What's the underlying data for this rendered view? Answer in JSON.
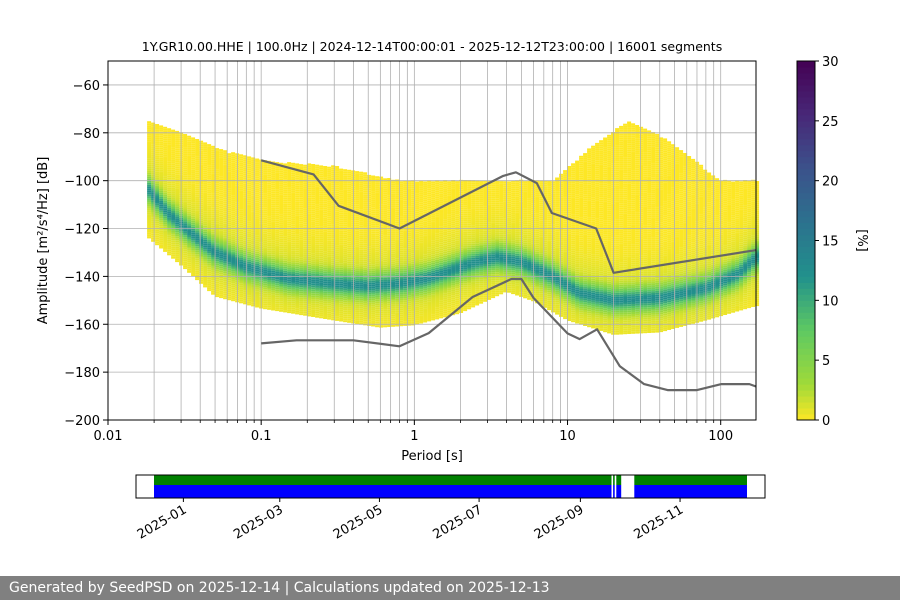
{
  "title": "1Y.GR10.00.HHE | 100.0Hz | 2024-12-14T00:00:01 - 2025-12-12T23:00:00 | 16001 segments",
  "footer": "Generated by SeedPSD on 2025-12-14 | Calculations updated on 2025-12-13",
  "chart_data": {
    "type": "heatmap",
    "xlabel": "Period [s]",
    "ylabel": "Amplitude [m²/s⁴/Hz] [dB]",
    "xscale": "log",
    "xlim": [
      0.01,
      170
    ],
    "ylim": [
      -200,
      -50
    ],
    "xticks": [
      0.01,
      0.1,
      1,
      10,
      100
    ],
    "xtick_labels": [
      "0.01",
      "0.1",
      "1",
      "10",
      "100"
    ],
    "yticks": [
      -200,
      -180,
      -160,
      -140,
      -120,
      -100,
      -80,
      -60
    ],
    "ytick_labels": [
      "−200",
      "−180",
      "−160",
      "−140",
      "−120",
      "−100",
      "−80",
      "−60"
    ],
    "grid": true,
    "colorbar": {
      "label": "[%]",
      "range": [
        0,
        30
      ],
      "ticks": [
        0,
        5,
        10,
        15,
        20,
        25,
        30
      ],
      "tick_labels": [
        "0",
        "5",
        "10",
        "15",
        "20",
        "25",
        "30"
      ],
      "colormap": "viridis"
    },
    "noise_models": [
      {
        "id": "nhnm",
        "color": "#666666",
        "points": [
          [
            0.1,
            -91.5
          ],
          [
            0.22,
            -97.4
          ],
          [
            0.32,
            -110.5
          ],
          [
            0.8,
            -120
          ],
          [
            3.8,
            -98
          ],
          [
            4.6,
            -96.5
          ],
          [
            6.3,
            -101
          ],
          [
            7.9,
            -113.5
          ],
          [
            15.4,
            -120
          ],
          [
            20,
            -138.5
          ],
          [
            170,
            -129
          ]
        ]
      },
      {
        "id": "nlnm",
        "color": "#666666",
        "points": [
          [
            0.1,
            -168
          ],
          [
            0.17,
            -166.7
          ],
          [
            0.4,
            -166.7
          ],
          [
            0.8,
            -169.2
          ],
          [
            1.24,
            -163.7
          ],
          [
            2.4,
            -148.6
          ],
          [
            4.3,
            -141.1
          ],
          [
            5.0,
            -141.1
          ],
          [
            6.0,
            -149
          ],
          [
            10,
            -163.8
          ],
          [
            12,
            -166.2
          ],
          [
            15.6,
            -162.1
          ],
          [
            21.9,
            -177.5
          ],
          [
            31.6,
            -185
          ],
          [
            45,
            -187.5
          ],
          [
            70,
            -187.5
          ],
          [
            101,
            -185
          ],
          [
            154,
            -185
          ],
          [
            170,
            -186
          ]
        ]
      }
    ],
    "psd_distribution": {
      "x_range": [
        0.018,
        170
      ],
      "mode_curve": [
        [
          0.018,
          -103
        ],
        [
          0.025,
          -114
        ],
        [
          0.035,
          -122
        ],
        [
          0.05,
          -130
        ],
        [
          0.08,
          -136
        ],
        [
          0.15,
          -141
        ],
        [
          0.3,
          -143
        ],
        [
          0.5,
          -144
        ],
        [
          0.8,
          -143
        ],
        [
          1.2,
          -141
        ],
        [
          2.5,
          -134
        ],
        [
          3.5,
          -132
        ],
        [
          5,
          -134
        ],
        [
          8,
          -140
        ],
        [
          12,
          -147
        ],
        [
          20,
          -150
        ],
        [
          40,
          -149
        ],
        [
          80,
          -145
        ],
        [
          130,
          -139
        ],
        [
          170,
          -132
        ]
      ],
      "upper_envelope": [
        [
          0.018,
          -75
        ],
        [
          0.03,
          -80
        ],
        [
          0.06,
          -88
        ],
        [
          0.12,
          -92
        ],
        [
          0.3,
          -94
        ],
        [
          0.8,
          -100
        ],
        [
          3,
          -100
        ],
        [
          8,
          -100
        ],
        [
          15,
          -85
        ],
        [
          25,
          -75
        ],
        [
          45,
          -83
        ],
        [
          100,
          -100
        ],
        [
          170,
          -100
        ]
      ],
      "lower_envelope": [
        [
          0.018,
          -123
        ],
        [
          0.03,
          -135
        ],
        [
          0.05,
          -148
        ],
        [
          0.1,
          -153
        ],
        [
          0.3,
          -158
        ],
        [
          0.6,
          -161
        ],
        [
          1,
          -160
        ],
        [
          2,
          -155
        ],
        [
          4,
          -146
        ],
        [
          6,
          -150
        ],
        [
          10,
          -158
        ],
        [
          20,
          -164
        ],
        [
          40,
          -163
        ],
        [
          80,
          -158
        ],
        [
          170,
          -152
        ]
      ]
    },
    "data_availability": {
      "x_ticks": [
        "2025-01",
        "2025-03",
        "2025-05",
        "2025-07",
        "2025-09",
        "2025-11"
      ],
      "range": [
        "2024-12-14",
        "2025-12-12"
      ],
      "bands": [
        {
          "name": "segments",
          "color": "#008000",
          "spans": [
            [
              "2024-12-14",
              "2025-09-20"
            ],
            [
              "2025-09-21",
              "2025-09-22"
            ],
            [
              "2025-09-23",
              "2025-09-26"
            ],
            [
              "2025-10-04",
              "2025-12-08"
            ],
            [
              "2025-12-08",
              "2025-12-12"
            ]
          ]
        },
        {
          "name": "coverage",
          "color": "#0000ff",
          "spans": [
            [
              "2024-12-14",
              "2025-09-20"
            ],
            [
              "2025-09-21",
              "2025-09-22"
            ],
            [
              "2025-09-23",
              "2025-09-26"
            ],
            [
              "2025-10-04",
              "2025-12-08"
            ],
            [
              "2025-12-08",
              "2025-12-12"
            ]
          ]
        }
      ]
    }
  }
}
